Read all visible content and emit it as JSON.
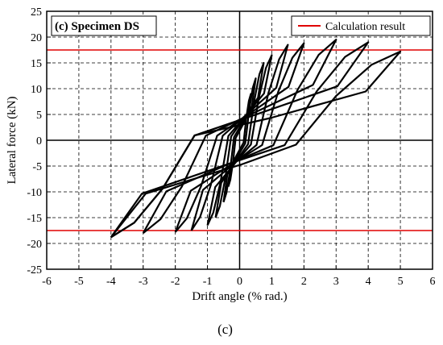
{
  "chart_data": {
    "type": "line",
    "panel_label": "(c) Specimen DS",
    "xlabel": "Drift angle (% rad.)",
    "ylabel": "Lateral force (kN)",
    "caption": "(c)",
    "xlim": [
      -6,
      6
    ],
    "ylim": [
      -25,
      25
    ],
    "xticks": [
      -6,
      -5,
      -4,
      -3,
      -2,
      -1,
      0,
      1,
      2,
      3,
      4,
      5,
      6
    ],
    "yticks": [
      -25,
      -20,
      -15,
      -10,
      -5,
      0,
      5,
      10,
      15,
      20,
      25
    ],
    "grid": true,
    "legend_position": "top-right",
    "colors": {
      "hysteresis": "#000000",
      "calculation": "#e00000",
      "grid": "#000000"
    },
    "series": [
      {
        "name": "Calculation result",
        "kind": "reference-lines",
        "y_values": [
          17.5,
          -17.5
        ]
      },
      {
        "kind": "hysteresis",
        "loops": [
          {
            "peak_pos": [
              0.35,
              9.0
            ],
            "peak_neg": [
              -0.35,
              -9.0
            ]
          },
          {
            "peak_pos": [
              0.5,
              12.0
            ],
            "peak_neg": [
              -0.5,
              -12.0
            ]
          },
          {
            "peak_pos": [
              0.75,
              15.0
            ],
            "peak_neg": [
              -0.75,
              -15.0
            ]
          },
          {
            "peak_pos": [
              1.0,
              16.5
            ],
            "peak_neg": [
              -1.0,
              -16.5
            ]
          },
          {
            "peak_pos": [
              1.5,
              18.5
            ],
            "peak_neg": [
              -1.5,
              -17.5
            ]
          },
          {
            "peak_pos": [
              2.0,
              18.8
            ],
            "peak_neg": [
              -2.0,
              -17.8
            ]
          },
          {
            "peak_pos": [
              3.0,
              19.5
            ],
            "peak_neg": [
              -3.0,
              -18.0
            ]
          },
          {
            "peak_pos": [
              4.0,
              19.0
            ],
            "peak_neg": [
              -4.0,
              -18.8
            ]
          },
          {
            "peak_pos": [
              5.0,
              17.2
            ],
            "peak_neg": [
              -4.0,
              -18.8
            ]
          }
        ]
      }
    ]
  }
}
